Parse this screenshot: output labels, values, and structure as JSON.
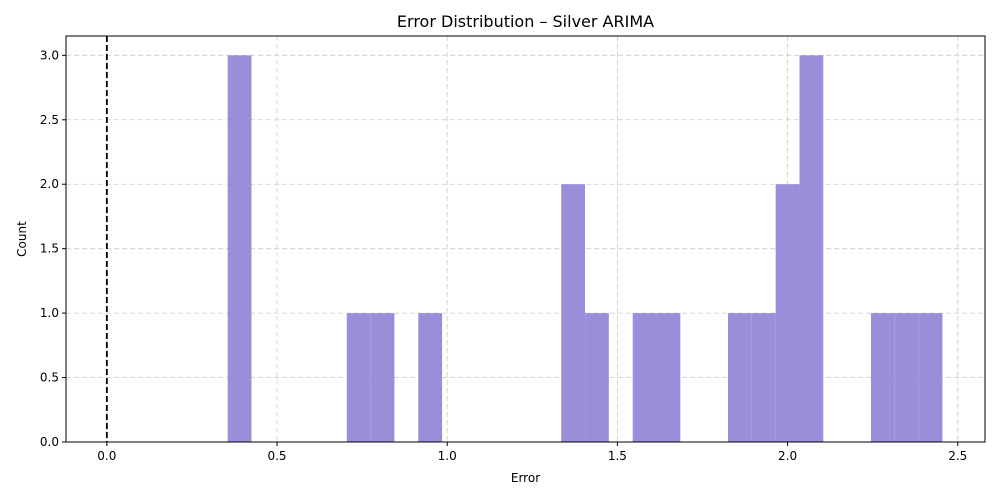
{
  "chart_data": {
    "type": "bar",
    "title": "Error Distribution – Silver ARIMA",
    "xlabel": "Error",
    "ylabel": "Count",
    "xlim": [
      -0.12,
      2.58
    ],
    "ylim": [
      0,
      3.15
    ],
    "xticks": [
      0.0,
      0.5,
      1.0,
      1.5,
      2.0,
      2.5
    ],
    "xtick_labels": [
      "0.0",
      "0.5",
      "1.0",
      "1.5",
      "2.0",
      "2.5"
    ],
    "yticks": [
      0.0,
      0.5,
      1.0,
      1.5,
      2.0,
      2.5,
      3.0
    ],
    "ytick_labels": [
      "0.0",
      "0.5",
      "1.0",
      "1.5",
      "2.0",
      "2.5",
      "3.0"
    ],
    "grid": true,
    "bar_color": "#9a8edb",
    "reference_line": {
      "x": 0.0,
      "style": "dashed",
      "color": "#000000"
    },
    "bin_width": 0.0699,
    "bins": [
      {
        "x0": 0.355,
        "count": 3
      },
      {
        "x0": 0.705,
        "count": 1
      },
      {
        "x0": 0.775,
        "count": 1
      },
      {
        "x0": 0.915,
        "count": 1
      },
      {
        "x0": 1.335,
        "count": 2
      },
      {
        "x0": 1.405,
        "count": 1
      },
      {
        "x0": 1.545,
        "count": 1
      },
      {
        "x0": 1.615,
        "count": 1
      },
      {
        "x0": 1.825,
        "count": 1
      },
      {
        "x0": 1.895,
        "count": 1
      },
      {
        "x0": 1.965,
        "count": 2
      },
      {
        "x0": 2.035,
        "count": 3
      },
      {
        "x0": 2.245,
        "count": 1
      },
      {
        "x0": 2.315,
        "count": 1
      },
      {
        "x0": 2.385,
        "count": 1
      }
    ]
  }
}
